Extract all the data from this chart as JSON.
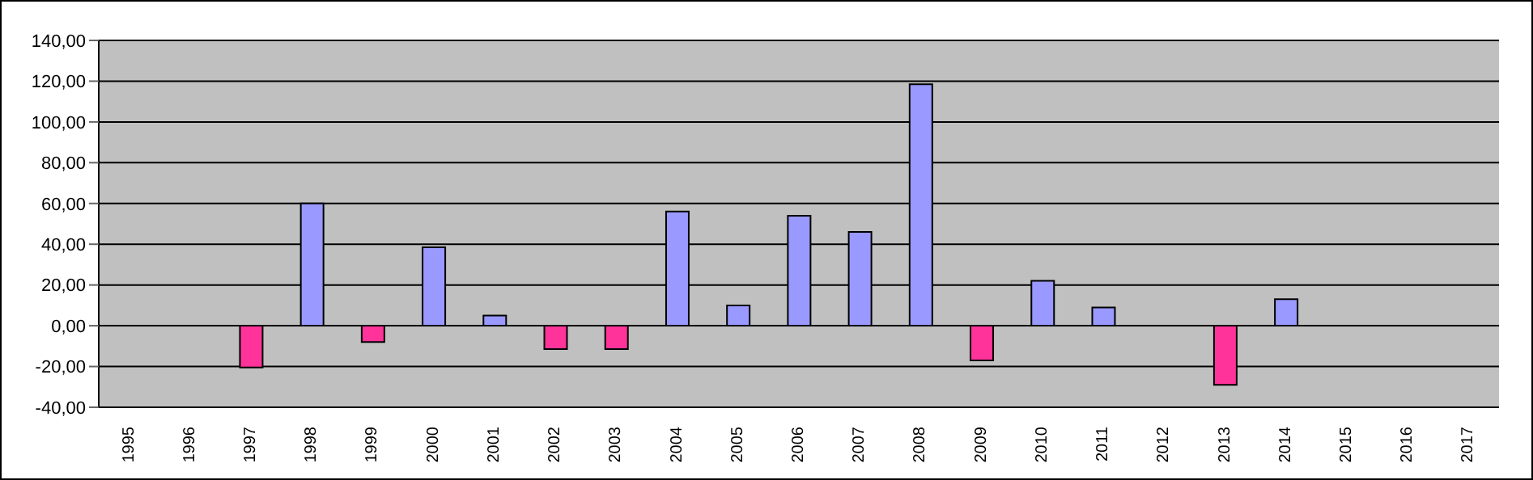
{
  "chart_data": {
    "type": "bar",
    "categories": [
      "1995",
      "1996",
      "1997",
      "1998",
      "1999",
      "2000",
      "2001",
      "2002",
      "2003",
      "2004",
      "2005",
      "2006",
      "2007",
      "2008",
      "2009",
      "2010",
      "2011",
      "2012",
      "2013",
      "2014",
      "2015",
      "2016",
      "2017"
    ],
    "values": [
      null,
      null,
      -20.5,
      60,
      -8,
      38.5,
      5,
      -11.5,
      -11.5,
      56,
      10,
      54,
      46,
      118.5,
      -17,
      22,
      9,
      null,
      -29,
      13,
      null,
      null,
      null
    ],
    "colors": [
      "#9999ff",
      "#9999ff",
      "#ff3399",
      "#9999ff",
      "#ff3399",
      "#9999ff",
      "#9999ff",
      "#ff3399",
      "#ff3399",
      "#9999ff",
      "#9999ff",
      "#9999ff",
      "#9999ff",
      "#9999ff",
      "#ff3399",
      "#9999ff",
      "#9999ff",
      "#9999ff",
      "#ff3399",
      "#9999ff",
      "#9999ff",
      "#9999ff",
      "#9999ff"
    ],
    "ylim": [
      -40,
      140
    ],
    "yticks": [
      {
        "value": -40,
        "label": "-40,00"
      },
      {
        "value": -20,
        "label": "-20,00"
      },
      {
        "value": 0,
        "label": "0,00"
      },
      {
        "value": 20,
        "label": "20,00"
      },
      {
        "value": 40,
        "label": "40,00"
      },
      {
        "value": 60,
        "label": "60,00"
      },
      {
        "value": 80,
        "label": "80,00"
      },
      {
        "value": 100,
        "label": "100,00"
      },
      {
        "value": 120,
        "label": "120,00"
      },
      {
        "value": 140,
        "label": "140,00"
      }
    ],
    "grid": "y"
  }
}
